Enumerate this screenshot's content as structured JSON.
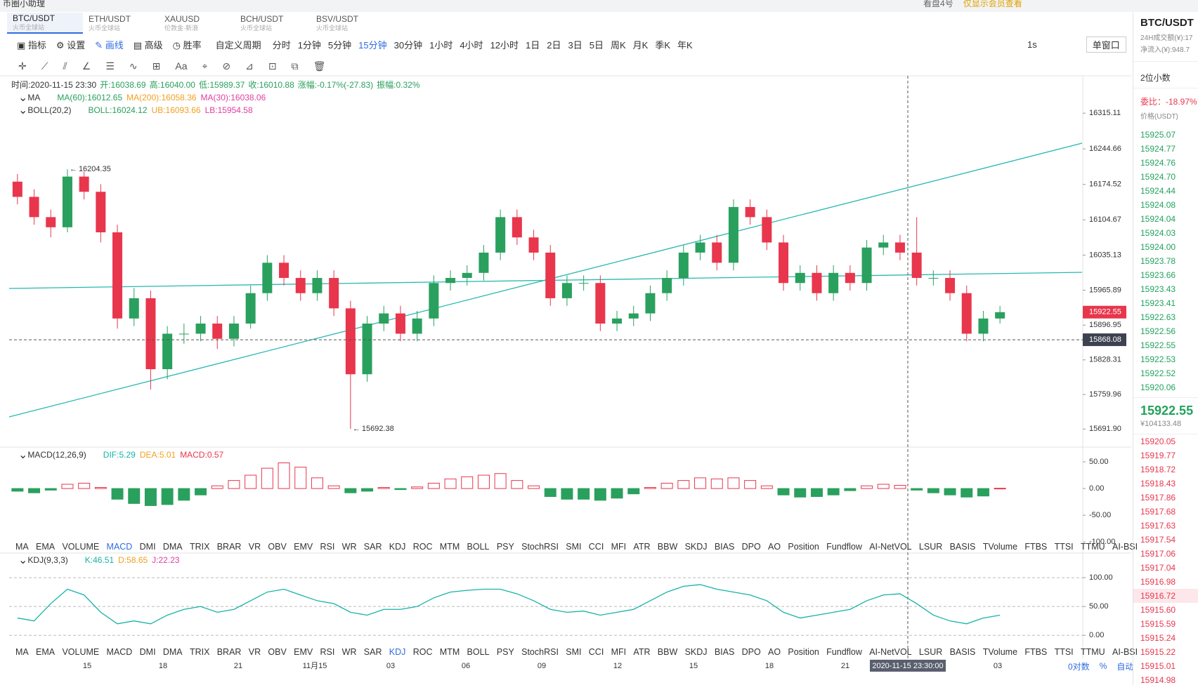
{
  "top": {
    "app": "币圈小助理",
    "account": "看盘4号",
    "notice": "仅显示会员查看"
  },
  "tabs": [
    {
      "symbol": "BTC/USDT",
      "exchange": "火币全球站"
    },
    {
      "symbol": "ETH/USDT",
      "exchange": "火币全球站"
    },
    {
      "symbol": "XAUUSD",
      "exchange": "伦敦金·新浪"
    },
    {
      "symbol": "BCH/USDT",
      "exchange": "火币全球站"
    },
    {
      "symbol": "BSV/USDT",
      "exchange": "火币全球站"
    }
  ],
  "toolbar": {
    "tools": [
      "指标",
      "设置",
      "画线",
      "高级",
      "胜率"
    ],
    "custom": "自定义周期",
    "periods": [
      "分时",
      "1分钟",
      "5分钟",
      "15分钟",
      "30分钟",
      "1小时",
      "4小时",
      "12小时",
      "1日",
      "2日",
      "3日",
      "5日",
      "周K",
      "月K",
      "季K",
      "年K"
    ],
    "refresh": "1s",
    "window": "单窗口",
    "font": "Aa"
  },
  "info": [
    "时间:2020-11-15 23:30",
    "开:16038.69",
    "高:16040.00",
    "低:15989.37",
    "收:16010.88",
    "涨幅:-0.17%(-27.83)",
    "振幅:0.32%"
  ],
  "legends": {
    "ma": {
      "name": "MA",
      "items": [
        "MA(60):16012.65",
        "MA(200):16058.36",
        "MA(30):16038.06"
      ]
    },
    "boll": {
      "name": "BOLL(20,2)",
      "items": [
        "BOLL:16024.12",
        "UB:16093.66",
        "LB:15954.58"
      ]
    },
    "macd": {
      "name": "MACD(12,26,9)",
      "items": [
        "DIF:5.29",
        "DEA:5.01",
        "MACD:0.57"
      ]
    },
    "kdj": {
      "name": "KDJ(9,3,3)",
      "items": [
        "K:46.51",
        "D:58.65",
        "J:22.23"
      ]
    }
  },
  "chart_data": [
    {
      "type": "candlestick",
      "ylim": [
        15666,
        16375
      ],
      "up_color": "#2aa05e",
      "down_color": "#e8364d",
      "yticks": [
        16315.11,
        16244.66,
        16174.52,
        16104.67,
        16035.13,
        15965.89,
        15896.95,
        15828.31,
        15759.96,
        {
          "value": 15691.9,
          "label": "15691.90"
        }
      ],
      "crosshair_price": 15868.08,
      "candles": [
        [
          16180,
          16195,
          16135,
          16150
        ],
        [
          16150,
          16165,
          16095,
          16110
        ],
        [
          16110,
          16125,
          16070,
          16090
        ],
        [
          16090,
          16204.35,
          16080,
          16190
        ],
        [
          16190,
          16200,
          16145,
          16160
        ],
        [
          16160,
          16175,
          16060,
          16080
        ],
        [
          16080,
          16095,
          15890,
          15910
        ],
        [
          15910,
          15970,
          15895,
          15950
        ],
        [
          15950,
          15965,
          15770,
          15810
        ],
        [
          15810,
          15895,
          15790,
          15880
        ],
        [
          15880,
          15900,
          15860,
          15880
        ],
        [
          15880,
          15915,
          15865,
          15900
        ],
        [
          15900,
          15915,
          15850,
          15870
        ],
        [
          15870,
          15915,
          15855,
          15900
        ],
        [
          15900,
          15975,
          15890,
          15960
        ],
        [
          15960,
          16035,
          15945,
          16020
        ],
        [
          16020,
          16035,
          15975,
          15990
        ],
        [
          15990,
          16005,
          15945,
          15960
        ],
        [
          15960,
          16005,
          15945,
          15990
        ],
        [
          15990,
          16005,
          15915,
          15930
        ],
        [
          15930,
          15945,
          15692.38,
          15800
        ],
        [
          15800,
          15915,
          15785,
          15900
        ],
        [
          15900,
          15935,
          15885,
          15920
        ],
        [
          15920,
          15935,
          15865,
          15880
        ],
        [
          15880,
          15925,
          15865,
          15910
        ],
        [
          15910,
          15995,
          15895,
          15980
        ],
        [
          15980,
          16005,
          15965,
          15990
        ],
        [
          15990,
          16015,
          15975,
          16000
        ],
        [
          16000,
          16055,
          15985,
          16040
        ],
        [
          16040,
          16125,
          16025,
          16110
        ],
        [
          16110,
          16125,
          16055,
          16070
        ],
        [
          16070,
          16085,
          16025,
          16040
        ],
        [
          16040,
          16055,
          15935,
          15950
        ],
        [
          15950,
          15995,
          15935,
          15980
        ],
        [
          15980,
          15995,
          15965,
          15980
        ],
        [
          15980,
          15995,
          15885,
          15900
        ],
        [
          15900,
          15925,
          15885,
          15910
        ],
        [
          15910,
          15935,
          15895,
          15920
        ],
        [
          15920,
          15975,
          15905,
          15960
        ],
        [
          15960,
          16005,
          15945,
          15990
        ],
        [
          15990,
          16055,
          15975,
          16040
        ],
        [
          16040,
          16075,
          16025,
          16060
        ],
        [
          16060,
          16075,
          16005,
          16020
        ],
        [
          16020,
          16145,
          16005,
          16130
        ],
        [
          16130,
          16145,
          16095,
          16110
        ],
        [
          16110,
          16125,
          16045,
          16060
        ],
        [
          16060,
          16075,
          15965,
          15980
        ],
        [
          15980,
          16015,
          15965,
          16000
        ],
        [
          16000,
          16015,
          15945,
          15960
        ],
        [
          15960,
          16015,
          15945,
          16000
        ],
        [
          16000,
          16015,
          15965,
          15980
        ],
        [
          15980,
          16065,
          15965,
          16050
        ],
        [
          16050,
          16075,
          16035,
          16060
        ],
        [
          16060,
          16075,
          16025,
          16040
        ],
        [
          16040,
          16110,
          15975,
          15990
        ],
        [
          15990,
          16005,
          15975,
          15990
        ],
        [
          15990,
          16005,
          15945,
          15960
        ],
        [
          15960,
          15975,
          15865,
          15880
        ],
        [
          15880,
          15925,
          15865,
          15910
        ],
        [
          15910,
          15935,
          15900,
          15922.55
        ]
      ]
    },
    {
      "type": "bar",
      "ylim": [
        -105,
        71
      ],
      "up_color": "#e8364d",
      "down_color": "#2aa05e",
      "yticks": [
        {
          "value": 50,
          "label": "50.00"
        },
        {
          "value": 0,
          "label": "0.00"
        },
        {
          "value": -50,
          "label": "-50.00"
        },
        {
          "value": -100,
          "label": "-100.00"
        }
      ],
      "values": [
        -5,
        -8,
        -3,
        8,
        10,
        2,
        -20,
        -28,
        -32,
        -30,
        -22,
        -12,
        5,
        15,
        25,
        38,
        48,
        40,
        20,
        5,
        -8,
        -5,
        2,
        -2,
        3,
        10,
        18,
        22,
        25,
        28,
        15,
        5,
        -15,
        -20,
        -20,
        -22,
        -18,
        -10,
        2,
        10,
        15,
        20,
        18,
        20,
        15,
        5,
        -12,
        -16,
        -15,
        -12,
        -4,
        5,
        8,
        6,
        -3,
        -8,
        -12,
        -16,
        -14,
        0.57
      ]
    },
    {
      "type": "line",
      "ylim": [
        -18,
        122
      ],
      "yticks": [
        {
          "value": 100,
          "label": "100.00"
        },
        {
          "value": 50,
          "label": "50.00"
        },
        {
          "value": 0,
          "label": "0.00"
        }
      ],
      "series": [
        {
          "color": "#16b3a6",
          "values": [
            30,
            25,
            55,
            80,
            70,
            40,
            20,
            25,
            20,
            35,
            45,
            50,
            40,
            45,
            60,
            75,
            80,
            70,
            60,
            55,
            40,
            35,
            45,
            45,
            50,
            65,
            75,
            78,
            80,
            80,
            72,
            60,
            45,
            40,
            42,
            35,
            40,
            45,
            60,
            75,
            85,
            88,
            80,
            75,
            70,
            60,
            40,
            30,
            35,
            40,
            45,
            60,
            70,
            72,
            55,
            35,
            25,
            20,
            30,
            35
          ]
        }
      ]
    }
  ],
  "indicator_tabs": [
    "MA",
    "EMA",
    "VOLUME",
    "MACD",
    "DMI",
    "DMA",
    "TRIX",
    "BRAR",
    "VR",
    "OBV",
    "EMV",
    "RSI",
    "WR",
    "SAR",
    "KDJ",
    "ROC",
    "MTM",
    "BOLL",
    "PSY",
    "StochRSI",
    "SMI",
    "CCI",
    "MFI",
    "ATR",
    "BBW",
    "SKDJ",
    "BIAS",
    "DPO",
    "AO",
    "Position",
    "Fundflow",
    "AI-NetVOL",
    "LSUR",
    "BASIS",
    "TVolume",
    "FTBS",
    "TTSI",
    "TTMU",
    "AI-BSI"
  ],
  "x_labels": [
    "15",
    "18",
    "21",
    "11月15",
    "03",
    "06",
    "09",
    "12",
    "15",
    "18",
    "21",
    "2020-11-15 23:30:00",
    "03"
  ],
  "axis_controls": [
    "0对数",
    "%",
    "自动"
  ],
  "orderbook": {
    "symbol": "BTC/USDT",
    "turnover": "24H成交额(¥):17",
    "inflow": "净流入(¥):948.7",
    "decimals": "2位小数",
    "ratio": "委比：-18.97%",
    "price_head": "价格(USDT)",
    "asks": [
      "15925.07",
      "15924.77",
      "15924.76",
      "15924.70",
      "15924.44",
      "15924.08",
      "15924.04",
      "15924.03",
      "15924.00",
      "15923.78",
      "15923.66",
      "15923.43",
      "15923.41",
      "15922.63",
      "15922.56",
      "15922.55",
      "15922.53",
      "15922.52",
      "15920.06"
    ],
    "last": "15922.55",
    "last_cny": "¥104133.48",
    "bids": [
      "15920.05",
      "15919.77",
      "15918.72",
      "15918.43",
      "15917.86",
      "15917.68",
      "15917.63",
      "15917.54",
      "15917.06",
      "15917.04",
      "15916.98",
      "15916.72",
      "15915.60",
      "15915.59",
      "15915.24",
      "15915.22",
      "15915.01",
      "15914.98"
    ]
  }
}
